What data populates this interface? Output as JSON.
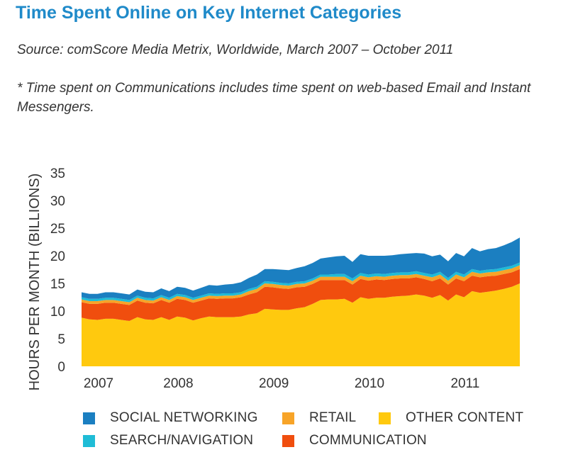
{
  "header": {
    "title": "Time Spent Online on Key Internet Categories",
    "source": "Source: comScore Media Metrix, Worldwide, March 2007 – October 2011",
    "note": "* Time spent on Communications includes time spent on web-based Email and Instant Messengers."
  },
  "chart_data": {
    "type": "area",
    "stacked": true,
    "ylabel": "HOURS PER MONTH (BILLIONS)",
    "xlabel": "",
    "ylim": [
      0,
      35
    ],
    "yticks": [
      "0",
      "5",
      "10",
      "15",
      "20",
      "25",
      "30",
      "35"
    ],
    "xticks": [
      "2007",
      "2008",
      "2009",
      "2010",
      "2011"
    ],
    "x": [
      "2007-03",
      "2007-04",
      "2007-05",
      "2007-06",
      "2007-07",
      "2007-08",
      "2007-09",
      "2007-10",
      "2007-11",
      "2007-12",
      "2008-01",
      "2008-02",
      "2008-03",
      "2008-04",
      "2008-05",
      "2008-06",
      "2008-07",
      "2008-08",
      "2008-09",
      "2008-10",
      "2008-11",
      "2008-12",
      "2009-01",
      "2009-02",
      "2009-03",
      "2009-04",
      "2009-05",
      "2009-06",
      "2009-07",
      "2009-08",
      "2009-09",
      "2009-10",
      "2009-11",
      "2009-12",
      "2010-01",
      "2010-02",
      "2010-03",
      "2010-04",
      "2010-05",
      "2010-06",
      "2010-07",
      "2010-08",
      "2010-09",
      "2010-10",
      "2010-11",
      "2010-12",
      "2011-01",
      "2011-02",
      "2011-03",
      "2011-04",
      "2011-05",
      "2011-06",
      "2011-07",
      "2011-08",
      "2011-09",
      "2011-10"
    ],
    "series": [
      {
        "name": "OTHER CONTENT",
        "color": "#ffc90e",
        "values": [
          8.8,
          8.5,
          8.4,
          8.6,
          8.6,
          8.4,
          8.2,
          8.9,
          8.5,
          8.4,
          8.9,
          8.4,
          9.0,
          8.8,
          8.3,
          8.7,
          9.0,
          8.9,
          8.9,
          8.9,
          9.0,
          9.4,
          9.6,
          10.4,
          10.3,
          10.2,
          10.2,
          10.5,
          10.7,
          11.3,
          12.0,
          12.1,
          12.1,
          12.2,
          11.5,
          12.5,
          12.2,
          12.4,
          12.4,
          12.6,
          12.7,
          12.8,
          13.0,
          12.8,
          12.4,
          12.9,
          11.9,
          13.0,
          12.5,
          13.6,
          13.3,
          13.5,
          13.7,
          14.0,
          14.4,
          15.0
        ]
      },
      {
        "name": "COMMUNICATION",
        "color": "#f04e0e",
        "values": [
          2.8,
          2.8,
          2.9,
          2.9,
          2.9,
          2.9,
          2.9,
          3.0,
          3.0,
          3.0,
          3.1,
          3.1,
          3.2,
          3.2,
          3.2,
          3.2,
          3.3,
          3.3,
          3.4,
          3.4,
          3.5,
          3.6,
          3.8,
          4.0,
          4.0,
          3.9,
          3.8,
          3.8,
          3.7,
          3.6,
          3.6,
          3.5,
          3.5,
          3.4,
          3.3,
          3.3,
          3.3,
          3.3,
          3.2,
          3.2,
          3.2,
          3.1,
          3.1,
          3.0,
          3.0,
          3.0,
          2.9,
          2.9,
          2.9,
          2.8,
          2.8,
          2.8,
          2.7,
          2.7,
          2.6,
          2.6
        ]
      },
      {
        "name": "RETAIL",
        "color": "#f7a428",
        "values": [
          0.5,
          0.5,
          0.5,
          0.5,
          0.5,
          0.5,
          0.5,
          0.5,
          0.5,
          0.5,
          0.5,
          0.5,
          0.5,
          0.5,
          0.5,
          0.5,
          0.5,
          0.5,
          0.5,
          0.5,
          0.5,
          0.6,
          0.6,
          0.6,
          0.6,
          0.6,
          0.6,
          0.6,
          0.6,
          0.6,
          0.6,
          0.6,
          0.6,
          0.6,
          0.6,
          0.6,
          0.6,
          0.6,
          0.6,
          0.6,
          0.6,
          0.6,
          0.6,
          0.6,
          0.7,
          0.7,
          0.7,
          0.7,
          0.7,
          0.7,
          0.7,
          0.7,
          0.7,
          0.7,
          0.7,
          0.7
        ]
      },
      {
        "name": "SEARCH/NAVIGATION",
        "color": "#1fbcd6",
        "values": [
          0.4,
          0.4,
          0.4,
          0.4,
          0.4,
          0.4,
          0.4,
          0.4,
          0.4,
          0.4,
          0.4,
          0.4,
          0.4,
          0.4,
          0.4,
          0.4,
          0.4,
          0.4,
          0.4,
          0.4,
          0.4,
          0.4,
          0.4,
          0.4,
          0.4,
          0.4,
          0.4,
          0.4,
          0.4,
          0.4,
          0.4,
          0.4,
          0.5,
          0.5,
          0.5,
          0.5,
          0.5,
          0.5,
          0.5,
          0.5,
          0.5,
          0.5,
          0.5,
          0.5,
          0.5,
          0.5,
          0.5,
          0.5,
          0.5,
          0.5,
          0.5,
          0.5,
          0.5,
          0.5,
          0.5,
          0.5
        ]
      },
      {
        "name": "SOCIAL NETWORKING",
        "color": "#1b7fc1",
        "values": [
          0.9,
          0.9,
          0.9,
          1.0,
          1.0,
          1.0,
          1.0,
          1.1,
          1.1,
          1.1,
          1.2,
          1.2,
          1.3,
          1.3,
          1.3,
          1.4,
          1.5,
          1.5,
          1.6,
          1.7,
          1.8,
          2.0,
          2.2,
          2.2,
          2.3,
          2.4,
          2.4,
          2.5,
          2.7,
          2.8,
          2.9,
          3.1,
          3.2,
          3.3,
          3.0,
          3.4,
          3.4,
          3.2,
          3.3,
          3.2,
          3.3,
          3.4,
          3.3,
          3.5,
          3.3,
          3.1,
          3.0,
          3.4,
          3.3,
          3.8,
          3.5,
          3.7,
          3.8,
          4.0,
          4.3,
          4.5
        ]
      }
    ],
    "grid": false,
    "legend_position": "bottom"
  },
  "legend": {
    "items": [
      {
        "label": "SOCIAL NETWORKING",
        "color": "#1b7fc1"
      },
      {
        "label": "RETAIL",
        "color": "#f7a428"
      },
      {
        "label": "OTHER CONTENT",
        "color": "#ffc90e"
      },
      {
        "label": "SEARCH/NAVIGATION",
        "color": "#1fbcd6"
      },
      {
        "label": "COMMUNICATION",
        "color": "#f04e0e"
      }
    ]
  }
}
